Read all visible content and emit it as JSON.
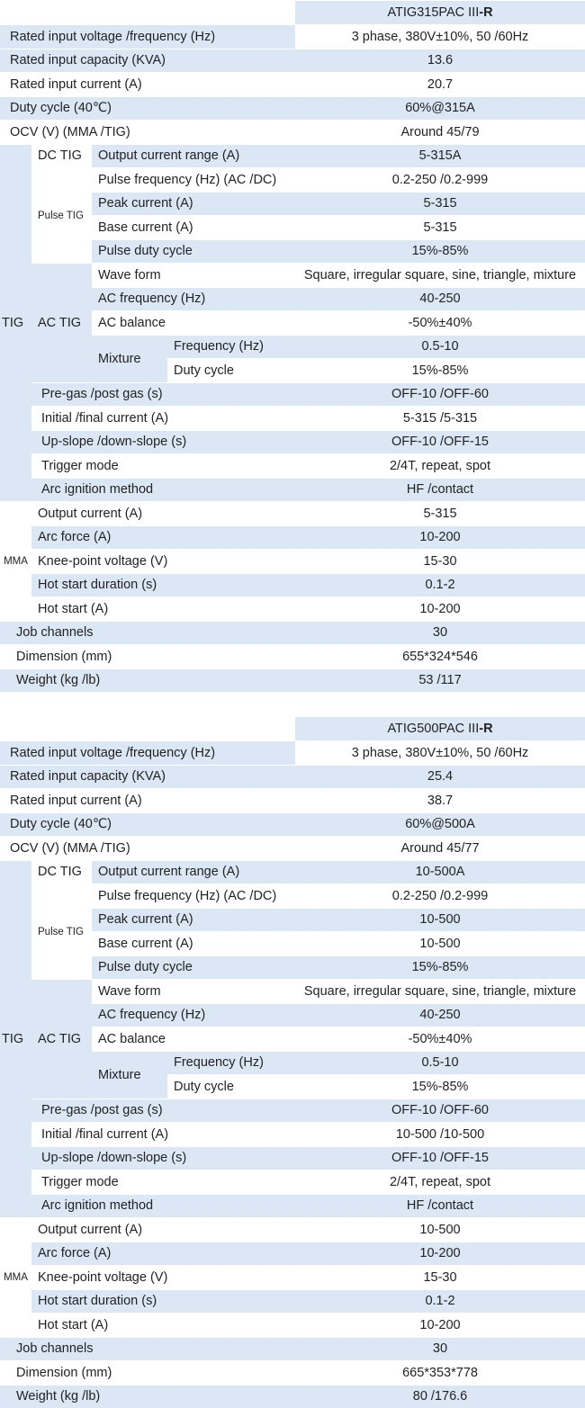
{
  "tables": [
    {
      "model": "ATIG315PAC III",
      "model_suffix": "-R",
      "rated_voltage_label": "Rated input voltage /frequency (Hz)",
      "rated_voltage": "3 phase, 380V±10%, 50 /60Hz",
      "rated_capacity_label": "Rated input capacity (KVA)",
      "rated_capacity": "13.6",
      "rated_current_label": "Rated input current (A)",
      "rated_current": "20.7",
      "duty_label": "Duty cycle (40℃)",
      "duty": "60%@315A",
      "ocv_label": "OCV (V) (MMA /TIG)",
      "ocv": "Around 45/79",
      "tig_group": "TIG",
      "dc_tig": "DC TIG",
      "output_range_label": "Output current range (A)",
      "output_range": "5-315A",
      "pulse_tig": "Pulse TIG",
      "pulse_freq_label": "Pulse frequency (Hz) (AC /DC)",
      "pulse_freq": "0.2-250 /0.2-999",
      "peak_label": "Peak current (A)",
      "peak": "5-315",
      "base_label": "Base current (A)",
      "base": "5-315",
      "pulse_duty_label": "Pulse duty cycle",
      "pulse_duty": "15%-85%",
      "ac_tig": "AC TIG",
      "wave_label": "Wave form",
      "wave": "Square, irregular square, sine, triangle, mixture",
      "ac_freq_label": "AC frequency (Hz)",
      "ac_freq": "40-250",
      "ac_balance_label": "AC balance",
      "ac_balance": "-50%±40%",
      "mixture": "Mixture",
      "mix_freq_label": "Frequency (Hz)",
      "mix_freq": "0.5-10",
      "mix_duty_label": "Duty cycle",
      "mix_duty": "15%-85%",
      "pregas_label": "Pre-gas /post gas (s)",
      "pregas": "OFF-10 /OFF-60",
      "initial_label": "Initial /final current (A)",
      "initial": "5-315 /5-315",
      "slope_label": "Up-slope /down-slope (s)",
      "slope": "OFF-10 /OFF-15",
      "trigger_label": "Trigger mode",
      "trigger": "2/4T, repeat, spot",
      "ignition_label": "Arc ignition method",
      "ignition": "HF /contact",
      "mma_group": "MMA",
      "mma_output_label": "Output current (A)",
      "mma_output": "5-315",
      "arc_force_label": "Arc force (A)",
      "arc_force": "10-200",
      "knee_label": "Knee-point voltage (V)",
      "knee": "15-30",
      "hot_dur_label": "Hot start duration (s)",
      "hot_dur": "0.1-2",
      "hot_label": "Hot start (A)",
      "hot": "10-200",
      "job_label": "Job channels",
      "job": "30",
      "dim_label": "Dimension (mm)",
      "dim": "655*324*546",
      "weight_label": "Weight (kg /lb)",
      "weight": "53 /117"
    },
    {
      "model": "ATIG500PAC III",
      "model_suffix": "-R",
      "rated_voltage_label": "Rated input voltage /frequency (Hz)",
      "rated_voltage": "3 phase, 380V±10%, 50 /60Hz",
      "rated_capacity_label": "Rated input capacity (KVA)",
      "rated_capacity": "25.4",
      "rated_current_label": "Rated input current (A)",
      "rated_current": "38.7",
      "duty_label": "Duty cycle (40℃)",
      "duty": "60%@500A",
      "ocv_label": "OCV (V) (MMA /TIG)",
      "ocv": "Around 45/77",
      "tig_group": "TIG",
      "dc_tig": "DC TIG",
      "output_range_label": "Output current range (A)",
      "output_range": "10-500A",
      "pulse_tig": "Pulse TIG",
      "pulse_freq_label": "Pulse frequency (Hz) (AC /DC)",
      "pulse_freq": "0.2-250 /0.2-999",
      "peak_label": "Peak current (A)",
      "peak": "10-500",
      "base_label": "Base current (A)",
      "base": "10-500",
      "pulse_duty_label": "Pulse duty cycle",
      "pulse_duty": "15%-85%",
      "ac_tig": "AC TIG",
      "wave_label": "Wave form",
      "wave": "Square, irregular square, sine, triangle, mixture",
      "ac_freq_label": "AC frequency (Hz)",
      "ac_freq": "40-250",
      "ac_balance_label": "AC balance",
      "ac_balance": "-50%±40%",
      "mixture": "Mixture",
      "mix_freq_label": "Frequency (Hz)",
      "mix_freq": "0.5-10",
      "mix_duty_label": "Duty cycle",
      "mix_duty": "15%-85%",
      "pregas_label": "Pre-gas /post gas (s)",
      "pregas": "OFF-10 /OFF-60",
      "initial_label": "Initial /final current (A)",
      "initial": "10-500 /10-500",
      "slope_label": "Up-slope /down-slope (s)",
      "slope": "OFF-10 /OFF-15",
      "trigger_label": "Trigger mode",
      "trigger": "2/4T, repeat, spot",
      "ignition_label": "Arc ignition method",
      "ignition": "HF /contact",
      "mma_group": "MMA",
      "mma_output_label": "Output current (A)",
      "mma_output": "10-500",
      "arc_force_label": "Arc force (A)",
      "arc_force": "10-200",
      "knee_label": "Knee-point voltage (V)",
      "knee": "15-30",
      "hot_dur_label": "Hot start duration (s)",
      "hot_dur": "0.1-2",
      "hot_label": "Hot start (A)",
      "hot": "10-200",
      "job_label": "Job channels",
      "job": "30",
      "dim_label": "Dimension (mm)",
      "dim": "665*353*778",
      "weight_label": "Weight (kg /lb)",
      "weight": "80 /176.6"
    }
  ]
}
